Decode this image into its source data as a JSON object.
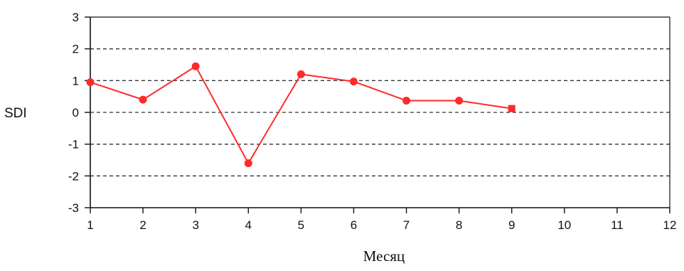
{
  "chart_data": {
    "type": "line",
    "xlabel": "Месяц",
    "ylabel": "SDI",
    "xlim": [
      1,
      12
    ],
    "ylim": [
      -3,
      3
    ],
    "x_ticks": [
      1,
      2,
      3,
      4,
      5,
      6,
      7,
      8,
      9,
      10,
      11,
      12
    ],
    "y_ticks": [
      3,
      2,
      1,
      0,
      -1,
      -2,
      -3
    ],
    "grid": "horizontal dashed",
    "series": [
      {
        "color": "#ff2a2a",
        "x": [
          1,
          2,
          3,
          4,
          5,
          6,
          7,
          8,
          9
        ],
        "y": [
          0.95,
          0.4,
          1.45,
          -1.6,
          1.2,
          0.97,
          0.37,
          0.37,
          0.12
        ]
      }
    ]
  }
}
